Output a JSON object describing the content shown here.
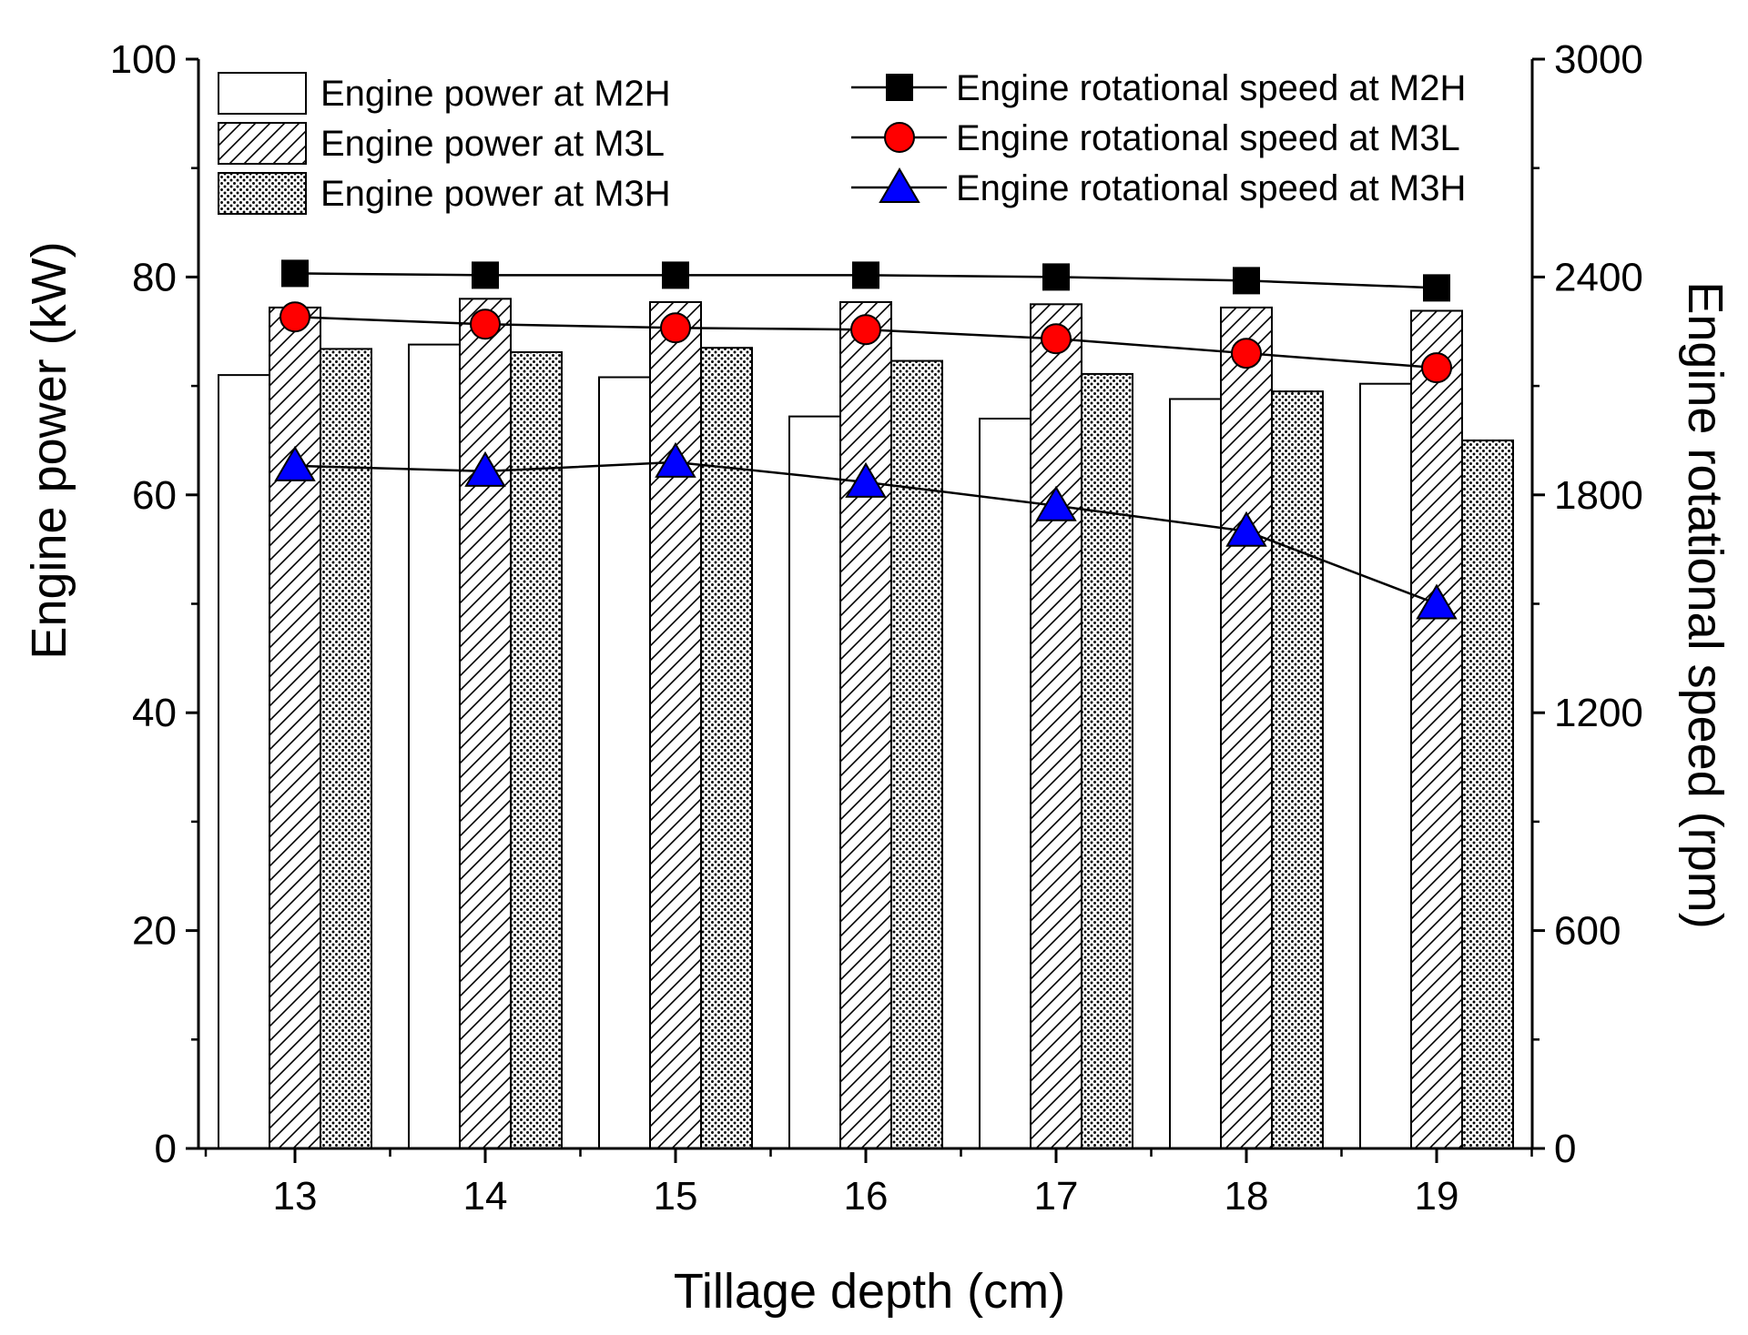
{
  "chart_data": {
    "type": "bar",
    "xlabel": "Tillage depth (cm)",
    "ylabel": "Engine power (kW)",
    "ylabel_right": "Engine rotational speed (rpm)",
    "categories": [
      "13",
      "14",
      "15",
      "16",
      "17",
      "18",
      "19"
    ],
    "ylim": [
      0,
      100
    ],
    "ylim_right": [
      0,
      3000
    ],
    "yticks": [
      "0",
      "20",
      "40",
      "60",
      "80",
      "100"
    ],
    "yticks_right": [
      "0",
      "600",
      "1200",
      "1800",
      "2400",
      "3000"
    ],
    "grid": false,
    "legend_position": "top",
    "bar_series": [
      {
        "name": "Engine power at M2H",
        "pattern": "none",
        "values": [
          71.0,
          73.8,
          70.8,
          67.2,
          67.0,
          68.8,
          70.2
        ]
      },
      {
        "name": "Engine power at M3L",
        "pattern": "hatch",
        "values": [
          77.2,
          78.0,
          77.7,
          77.7,
          77.5,
          77.2,
          76.9
        ]
      },
      {
        "name": "Engine power at M3H",
        "pattern": "dots",
        "values": [
          73.4,
          73.1,
          73.5,
          72.3,
          71.1,
          69.5,
          65.0
        ]
      }
    ],
    "line_series": [
      {
        "name": "Engine rotational speed at M2H",
        "marker": "square",
        "color": "#000000",
        "values": [
          2410,
          2405,
          2405,
          2405,
          2400,
          2390,
          2370
        ]
      },
      {
        "name": "Engine rotational speed at M3L",
        "marker": "circle",
        "color": "#ff0000",
        "values": [
          2290,
          2270,
          2260,
          2255,
          2230,
          2190,
          2150
        ]
      },
      {
        "name": "Engine rotational speed at M3H",
        "marker": "triangle",
        "color": "#0000ff",
        "values": [
          1880,
          1865,
          1890,
          1835,
          1770,
          1700,
          1500
        ]
      }
    ]
  }
}
